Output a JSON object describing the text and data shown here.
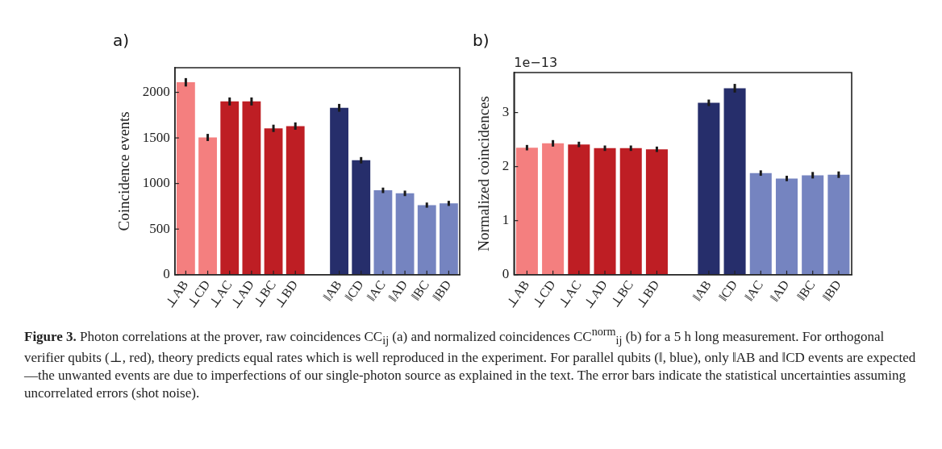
{
  "chart_data": [
    {
      "type": "bar",
      "title": "a)",
      "ylabel": "Coincidence events",
      "categories": [
        "⊥AB",
        "⊥CD",
        "⊥AC",
        "⊥AD",
        "⊥BC",
        "⊥BD",
        null,
        "‖AB",
        "‖CD",
        "‖AC",
        "‖AD",
        "‖BC",
        "‖BD"
      ],
      "series": [
        {
          "values": [
            2110,
            1505,
            1900,
            1900,
            1605,
            1630,
            null,
            1830,
            1255,
            925,
            892,
            763,
            782
          ],
          "errors": [
            46,
            39,
            44,
            44,
            40,
            40,
            null,
            43,
            35,
            30,
            30,
            28,
            28
          ],
          "colors": [
            "#f47f7f",
            "#f47f7f",
            "#be1e24",
            "#be1e24",
            "#be1e24",
            "#be1e24",
            null,
            "#262e6b",
            "#262e6b",
            "#7584c0",
            "#7584c0",
            "#7584c0",
            "#7584c0"
          ]
        }
      ],
      "ylim": [
        0,
        2270
      ],
      "yticks": [
        0,
        500,
        1000,
        1500,
        2000
      ],
      "grid": false,
      "legend": false,
      "annotations": [
        "Figure 3.",
        "Photon correlations at the prover, raw coincidences CC$_{ij}$ (a) and normalized coincidences CC$^{norm}$$_{ij}$ (b) for a 5 h long measurement. For orthogonal verifier qubits (⊥, red), theory predicts equal rates which is well reproduced in the experiment. For parallel qubits (‖, blue), only ‖AB and ‖CD events are expected—the unwanted events are due to imperfections of our single-photon source as explained in the text. The error bars indicate the statistical uncertainties assuming uncorrelated errors (shot noise)."
      ]
    },
    {
      "type": "bar",
      "title": "b)",
      "ylabel": "Normalized coincidences",
      "categories": [
        "⊥AB",
        "⊥CD",
        "⊥AC",
        "⊥AD",
        "⊥BC",
        "⊥BD",
        null,
        "‖AB",
        "‖CD",
        "‖AC",
        "‖AD",
        "‖BC",
        "‖BD"
      ],
      "series": [
        {
          "values": [
            2.35,
            2.43,
            2.41,
            2.34,
            2.34,
            2.32,
            null,
            3.18,
            3.45,
            1.88,
            1.78,
            1.84,
            1.85
          ],
          "errors": [
            0.05,
            0.06,
            0.05,
            0.05,
            0.05,
            0.05,
            null,
            0.06,
            0.08,
            0.05,
            0.05,
            0.06,
            0.06
          ],
          "colors": [
            "#f47f7f",
            "#f47f7f",
            "#be1e24",
            "#be1e24",
            "#be1e24",
            "#be1e24",
            null,
            "#262e6b",
            "#262e6b",
            "#7584c0",
            "#7584c0",
            "#7584c0",
            "#7584c0"
          ]
        }
      ],
      "ylim": [
        0,
        3.74
      ],
      "yticks": [
        0,
        1,
        2,
        3
      ],
      "grid": false,
      "legend": false,
      "annotations": [
        "1e−13"
      ]
    }
  ]
}
